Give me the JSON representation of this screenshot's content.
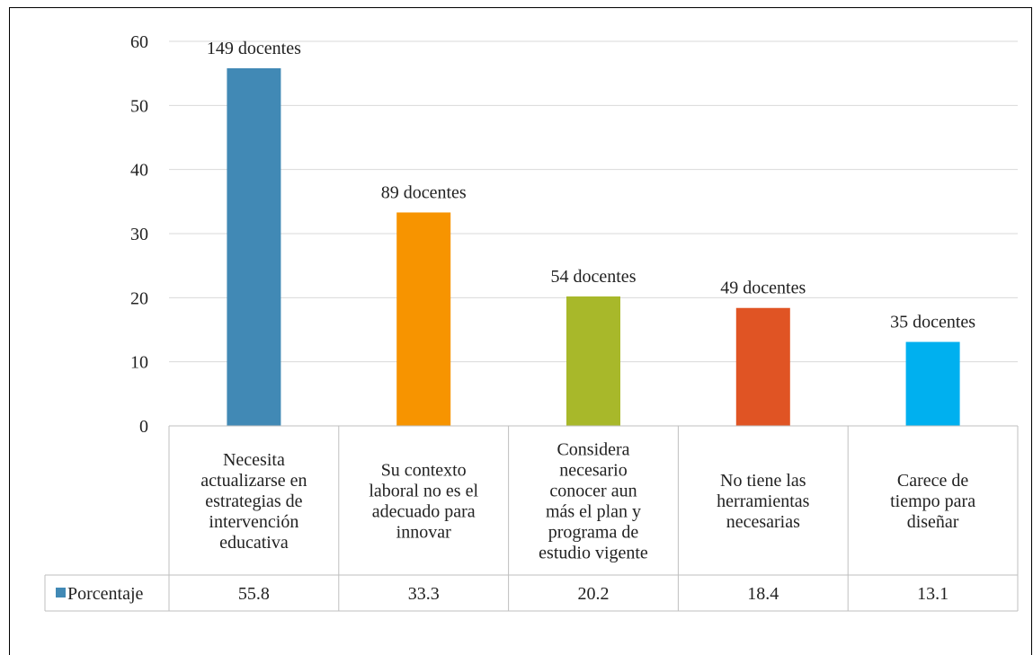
{
  "chart_data": {
    "type": "bar",
    "categories": [
      [
        "Necesita",
        "actualizarse en",
        "estrategias de",
        "intervención",
        "educativa"
      ],
      [
        "Su contexto",
        "laboral no es el",
        "adecuado para",
        "innovar"
      ],
      [
        "Considera",
        "necesario",
        "conocer aun",
        "más el plan y",
        "programa de",
        "estudio vigente"
      ],
      [
        "No tiene las",
        "herramientas",
        "necesarias"
      ],
      [
        "Carece de",
        "tiempo para",
        "diseñar"
      ]
    ],
    "series": [
      {
        "name": "Porcentaje",
        "values": [
          55.8,
          33.3,
          20.2,
          18.4,
          13.1
        ],
        "value_labels": [
          "55.8",
          "33.3",
          "20.2",
          "18.4",
          "13.1"
        ]
      }
    ],
    "data_labels": [
      "149 docentes",
      "89 docentes",
      "54 docentes",
      "49 docentes",
      "35 docentes"
    ],
    "colors": [
      "#4189b5",
      "#f79400",
      "#a8b82a",
      "#e05424",
      "#00b0ef"
    ],
    "ylim": [
      0,
      60
    ],
    "yticks": [
      "0",
      "10",
      "20",
      "30",
      "40",
      "50",
      "60"
    ],
    "grid": true,
    "data_table": true,
    "legend_swatch_color": "#4189b5"
  }
}
